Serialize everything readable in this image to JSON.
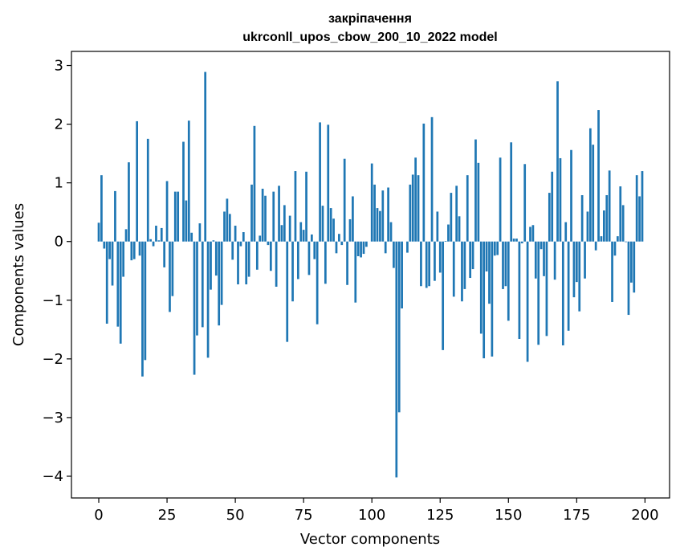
{
  "chart_data": {
    "type": "bar",
    "title": "закріпачення",
    "subtitle": "ukrconll_upos_cbow_200_10_2022 model",
    "xlabel": "Vector components",
    "ylabel": "Components values",
    "xlim": [
      -10,
      209
    ],
    "ylim": [
      -4.37,
      3.24
    ],
    "xticks": [
      0,
      25,
      50,
      75,
      100,
      125,
      150,
      175,
      200
    ],
    "yticks": [
      3,
      2,
      1,
      0,
      -1,
      -2,
      -3,
      -4
    ],
    "ytick_labels": [
      "3",
      "2",
      "1",
      "0",
      "−1",
      "−2",
      "−3",
      "−4"
    ],
    "grid": false,
    "color": "#1f77b4",
    "x": [
      0,
      1,
      2,
      3,
      4,
      5,
      6,
      7,
      8,
      9,
      10,
      11,
      12,
      13,
      14,
      15,
      16,
      17,
      18,
      19,
      20,
      21,
      22,
      23,
      24,
      25,
      26,
      27,
      28,
      29,
      30,
      31,
      32,
      33,
      34,
      35,
      36,
      37,
      38,
      39,
      40,
      41,
      42,
      43,
      44,
      45,
      46,
      47,
      48,
      49,
      50,
      51,
      52,
      53,
      54,
      55,
      56,
      57,
      58,
      59,
      60,
      61,
      62,
      63,
      64,
      65,
      66,
      67,
      68,
      69,
      70,
      71,
      72,
      73,
      74,
      75,
      76,
      77,
      78,
      79,
      80,
      81,
      82,
      83,
      84,
      85,
      86,
      87,
      88,
      89,
      90,
      91,
      92,
      93,
      94,
      95,
      96,
      97,
      98,
      99,
      100,
      101,
      102,
      103,
      104,
      105,
      106,
      107,
      108,
      109,
      110,
      111,
      112,
      113,
      114,
      115,
      116,
      117,
      118,
      119,
      120,
      121,
      122,
      123,
      124,
      125,
      126,
      127,
      128,
      129,
      130,
      131,
      132,
      133,
      134,
      135,
      136,
      137,
      138,
      139,
      140,
      141,
      142,
      143,
      144,
      145,
      146,
      147,
      148,
      149,
      150,
      151,
      152,
      153,
      154,
      155,
      156,
      157,
      158,
      159,
      160,
      161,
      162,
      163,
      164,
      165,
      166,
      167,
      168,
      169,
      170,
      171,
      172,
      173,
      174,
      175,
      176,
      177,
      178,
      179,
      180,
      181,
      182,
      183,
      184,
      185,
      186,
      187,
      188,
      189,
      190,
      191,
      192,
      193,
      194,
      195,
      196,
      197,
      198,
      199
    ],
    "values": [
      0.32,
      1.13,
      -0.12,
      -1.4,
      -0.3,
      -0.75,
      0.86,
      -1.45,
      -1.74,
      -0.6,
      0.21,
      1.35,
      -0.32,
      -0.3,
      2.05,
      -0.24,
      -2.3,
      -2.02,
      1.75,
      0.04,
      -0.08,
      0.27,
      0.02,
      0.23,
      -0.44,
      1.03,
      -1.2,
      -0.93,
      0.85,
      0.85,
      0.0,
      1.7,
      0.7,
      2.06,
      0.15,
      -2.27,
      -1.6,
      0.31,
      -1.46,
      2.89,
      -1.98,
      -0.82,
      0.02,
      -0.58,
      -1.43,
      -1.08,
      0.51,
      0.73,
      0.47,
      -0.31,
      0.27,
      -0.73,
      -0.08,
      0.16,
      -0.73,
      -0.6,
      0.97,
      1.97,
      -0.48,
      0.1,
      0.9,
      0.78,
      -0.06,
      -0.5,
      0.85,
      -0.77,
      0.95,
      0.28,
      0.62,
      -1.71,
      0.44,
      -1.02,
      1.2,
      -0.64,
      0.33,
      0.2,
      1.19,
      -0.57,
      0.12,
      -0.3,
      -1.41,
      2.03,
      0.61,
      -0.72,
      1.99,
      0.57,
      0.39,
      -0.2,
      0.13,
      -0.06,
      1.41,
      -0.74,
      0.38,
      0.77,
      -1.04,
      -0.25,
      -0.27,
      -0.21,
      -0.09,
      0.0,
      1.33,
      0.97,
      0.57,
      0.52,
      0.87,
      -0.2,
      0.92,
      0.33,
      -0.45,
      -4.02,
      -2.91,
      -1.14,
      0.0,
      -0.19,
      0.97,
      1.14,
      1.43,
      1.13,
      -0.76,
      2.01,
      -0.79,
      -0.76,
      2.12,
      -0.67,
      0.51,
      -0.53,
      -1.85,
      0.01,
      0.29,
      0.83,
      -0.94,
      0.95,
      0.43,
      -1.02,
      -0.81,
      1.13,
      -0.62,
      -0.47,
      1.74,
      1.34,
      -1.57,
      -1.99,
      -0.51,
      -1.06,
      -1.96,
      -0.24,
      -0.23,
      1.43,
      -0.81,
      -0.76,
      -1.35,
      1.69,
      0.05,
      0.05,
      -1.66,
      -0.03,
      1.32,
      -2.05,
      0.25,
      0.28,
      -0.63,
      -1.76,
      -0.13,
      -0.59,
      -1.61,
      0.83,
      1.19,
      -0.65,
      2.73,
      1.42,
      -1.77,
      0.33,
      -1.52,
      1.56,
      -0.95,
      -0.69,
      -1.19,
      0.79,
      -0.63,
      0.51,
      1.93,
      1.65,
      -0.15,
      2.24,
      0.09,
      0.53,
      0.79,
      1.21,
      -1.03,
      -0.24,
      0.09,
      0.94,
      0.62,
      -0.01,
      -1.25,
      -0.7,
      -0.87,
      1.13,
      0.77,
      1.2
    ]
  }
}
